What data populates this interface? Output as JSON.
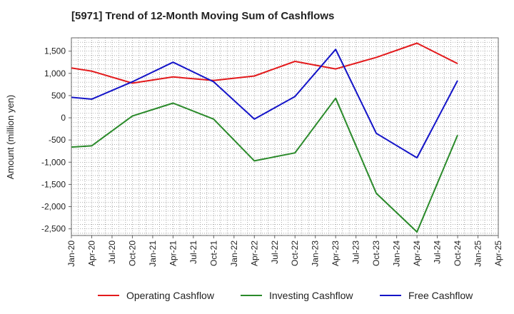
{
  "chart_data": {
    "type": "line",
    "title": "[5971]  Trend of 12-Month Moving Sum of Cashflows",
    "xlabel": "",
    "ylabel": "Amount (million yen)",
    "ylim": [
      -2650,
      1800
    ],
    "yticks": [
      1500,
      1000,
      500,
      0,
      -500,
      -1000,
      -1500,
      -2000,
      -2500
    ],
    "ytick_labels": [
      "1,500",
      "1,000",
      "500",
      "0",
      "-500",
      "-1,000",
      "-1,500",
      "-2,000",
      "-2,500"
    ],
    "categories": [
      "Jan-20",
      "Apr-20",
      "Jul-20",
      "Oct-20",
      "Jan-21",
      "Apr-21",
      "Jul-21",
      "Oct-21",
      "Jan-22",
      "Apr-22",
      "Jul-22",
      "Oct-22",
      "Jan-23",
      "Apr-23",
      "Jul-23",
      "Oct-23",
      "Jan-24",
      "Apr-24",
      "Jul-24",
      "Oct-24",
      "Jan-25",
      "Apr-25"
    ],
    "grid": true,
    "legend_position": "bottom",
    "series": [
      {
        "name": "Operating Cashflow",
        "color": "#e31a1c",
        "points": [
          [
            "Jan-20",
            1120
          ],
          [
            "Apr-20",
            1050
          ],
          [
            "Oct-20",
            780
          ],
          [
            "Apr-21",
            920
          ],
          [
            "Oct-21",
            840
          ],
          [
            "Apr-22",
            940
          ],
          [
            "Oct-22",
            1270
          ],
          [
            "Apr-23",
            1100
          ],
          [
            "Oct-23",
            1360
          ],
          [
            "Apr-24",
            1680
          ],
          [
            "Oct-24",
            1220
          ]
        ]
      },
      {
        "name": "Investing Cashflow",
        "color": "#2a8a2a",
        "points": [
          [
            "Jan-20",
            -660
          ],
          [
            "Apr-20",
            -630
          ],
          [
            "Oct-20",
            40
          ],
          [
            "Apr-21",
            330
          ],
          [
            "Oct-21",
            -30
          ],
          [
            "Apr-22",
            -970
          ],
          [
            "Oct-22",
            -790
          ],
          [
            "Apr-23",
            440
          ],
          [
            "Oct-23",
            -1700
          ],
          [
            "Apr-24",
            -2570
          ],
          [
            "Oct-24",
            -390
          ]
        ]
      },
      {
        "name": "Free Cashflow",
        "color": "#1414c8",
        "points": [
          [
            "Jan-20",
            460
          ],
          [
            "Apr-20",
            420
          ],
          [
            "Oct-20",
            810
          ],
          [
            "Apr-21",
            1250
          ],
          [
            "Oct-21",
            810
          ],
          [
            "Apr-22",
            -30
          ],
          [
            "Oct-22",
            480
          ],
          [
            "Apr-23",
            1540
          ],
          [
            "Oct-23",
            -350
          ],
          [
            "Apr-24",
            -900
          ],
          [
            "Oct-24",
            840
          ]
        ]
      }
    ]
  }
}
